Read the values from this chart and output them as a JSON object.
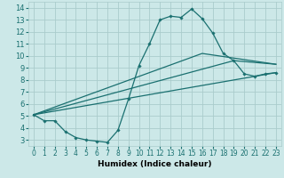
{
  "xlabel": "Humidex (Indice chaleur)",
  "xlim": [
    -0.5,
    23.5
  ],
  "ylim": [
    2.5,
    14.5
  ],
  "xticks": [
    0,
    1,
    2,
    3,
    4,
    5,
    6,
    7,
    8,
    9,
    10,
    11,
    12,
    13,
    14,
    15,
    16,
    17,
    18,
    19,
    20,
    21,
    22,
    23
  ],
  "yticks": [
    3,
    4,
    5,
    6,
    7,
    8,
    9,
    10,
    11,
    12,
    13,
    14
  ],
  "bg_color": "#cce8e8",
  "grid_color": "#aacccc",
  "line_color": "#1a7070",
  "line1_x": [
    0,
    1,
    2,
    3,
    4,
    5,
    6,
    7,
    8,
    9,
    10,
    11,
    12,
    13,
    14,
    15,
    16,
    17,
    18,
    19,
    20,
    21,
    22,
    23
  ],
  "line1_y": [
    5.1,
    4.6,
    4.6,
    3.7,
    3.2,
    3.0,
    2.9,
    2.8,
    3.8,
    6.4,
    9.2,
    11.0,
    13.0,
    13.3,
    13.2,
    13.9,
    13.1,
    11.9,
    10.2,
    9.6,
    8.5,
    8.3,
    8.5,
    8.6
  ],
  "line2_x": [
    0,
    23
  ],
  "line2_y": [
    5.1,
    8.6
  ],
  "line3_x": [
    0,
    19,
    23
  ],
  "line3_y": [
    5.1,
    9.6,
    9.3
  ],
  "line4_x": [
    0,
    16,
    23
  ],
  "line4_y": [
    5.1,
    10.2,
    9.3
  ],
  "xtick_fontsize": 5.5,
  "ytick_fontsize": 6.0,
  "xlabel_fontsize": 6.5
}
